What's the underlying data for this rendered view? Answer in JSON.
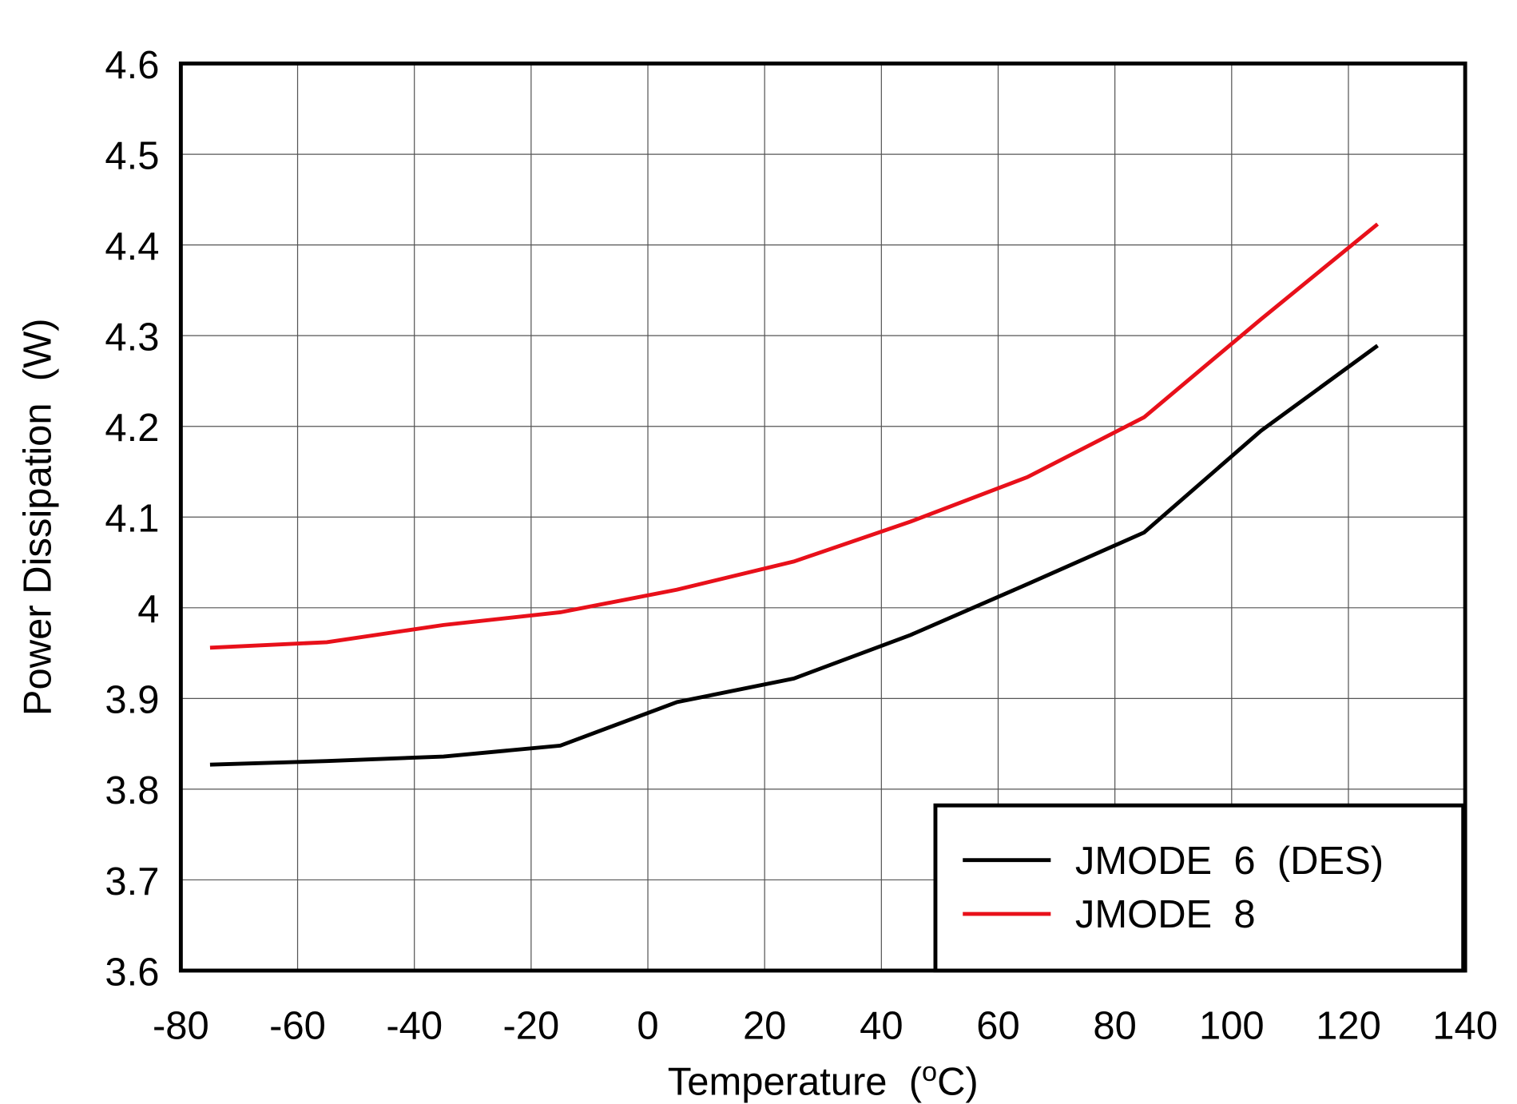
{
  "chart_data": {
    "type": "line",
    "y_label": "Power Dissipation  (W)",
    "x_label": [
      "Temperature  (",
      "o",
      "C)"
    ],
    "x": [
      -75,
      -55,
      -35,
      -15,
      5,
      25,
      45,
      65,
      85,
      105,
      125
    ],
    "series": [
      {
        "name": "JMODE  6  (DES)",
        "color": "#000000",
        "values": [
          3.827,
          3.831,
          3.836,
          3.848,
          3.896,
          3.922,
          3.97,
          4.026,
          4.083,
          4.195,
          4.289
        ]
      },
      {
        "name": "JMODE  8",
        "color": "#e8101a",
        "values": [
          3.956,
          3.962,
          3.981,
          3.995,
          4.02,
          4.051,
          4.095,
          4.144,
          4.21,
          4.318,
          4.423
        ]
      }
    ],
    "xlim": [
      -80,
      140
    ],
    "xticks": [
      -80,
      -60,
      -40,
      -20,
      0,
      20,
      40,
      60,
      80,
      100,
      120,
      140
    ],
    "ylim": [
      3.6,
      4.6
    ],
    "yticks": [
      3.6,
      3.7,
      3.8,
      3.9,
      4,
      4.1,
      4.2,
      4.3,
      4.4,
      4.5,
      4.6
    ],
    "grid": true,
    "legend": "lower right"
  }
}
